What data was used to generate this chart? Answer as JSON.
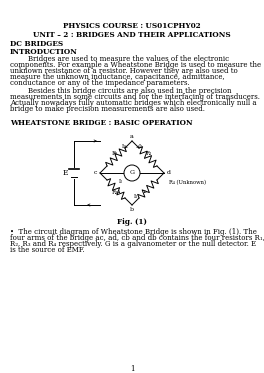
{
  "title1": "PHYSICS COURSE : US01CPHY02",
  "title2": "UNIT – 2 : BRIDGES AND THEIR APPLICATIONS",
  "section1": "DC BRIDGES",
  "section2": "INTRODUCTION",
  "intro_para1": "        Bridges are used to measure the values of the electronic\ncomponents. For example a Wheatstone Bridge is used to measure the\nunknown resistance of a resistor. However they are also used to\nmeasure the unknown inductance, capacitance, admittance,\nconductance or any of the impedance parameters.",
  "intro_para2": "        Besides this bridge circuits are also used in the precision\nmeasurements in some circuits and for the interfacing of transducers.\nActually nowadays fully automatic bridges which electronically null a\nbridge to make precision measurements are also used.",
  "section3": "WHEATSTONE BRIDGE : BASIC OPERATION",
  "fig_caption": "Fig. (1)",
  "bullet_text": "•  The circuit diagram of Wheatstone Bridge is shown in Fig. (1). The\nfour arms of the bridge ac, ad, cb and db contains the four resistors R₁,\nR₂, R₃ and R₄ respectively. G is a galvanometer or the null detector. E\nis the source of EMF.",
  "page_num": "1",
  "bg_color": "#ffffff"
}
